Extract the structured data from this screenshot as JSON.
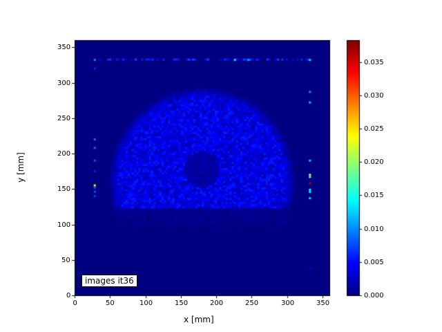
{
  "chart_data": {
    "type": "heatmap",
    "title": "",
    "xlabel": "x [mm]",
    "ylabel": "y [mm]",
    "xlim": [
      0,
      360
    ],
    "ylim": [
      0,
      360
    ],
    "xticks": [
      "0",
      "50",
      "100",
      "150",
      "200",
      "250",
      "300",
      "350"
    ],
    "yticks": [
      "0",
      "50",
      "100",
      "150",
      "200",
      "250",
      "300",
      "350"
    ],
    "colormap": "jet",
    "colorbar": {
      "range": [
        0.0,
        0.0383
      ],
      "ticks": [
        "0.000",
        "0.005",
        "0.010",
        "0.015",
        "0.020",
        "0.025",
        "0.030",
        "0.035"
      ]
    },
    "annotation": "images it36",
    "grid": false,
    "background_value": 0.0,
    "features": {
      "disk": {
        "center_mm": [
          180,
          162
        ],
        "radius_mm": 133,
        "lower_cut_mm": 122,
        "typical_value": 0.004
      },
      "low_hole": {
        "center_mm": [
          180,
          178
        ],
        "radius_mm": 25,
        "typical_value": 0.0015
      }
    },
    "highlighted_cells": [
      {
        "x": 28,
        "y": 332,
        "v": 0.01
      },
      {
        "x": 332,
        "y": 332,
        "v": 0.013
      },
      {
        "x": 226,
        "y": 332,
        "v": 0.013
      },
      {
        "x": 245,
        "y": 332,
        "v": 0.011
      },
      {
        "x": 28,
        "y": 320,
        "v": 0.006
      },
      {
        "x": 332,
        "y": 287,
        "v": 0.01
      },
      {
        "x": 332,
        "y": 272,
        "v": 0.012
      },
      {
        "x": 28,
        "y": 220,
        "v": 0.009
      },
      {
        "x": 28,
        "y": 208,
        "v": 0.009
      },
      {
        "x": 28,
        "y": 190,
        "v": 0.008
      },
      {
        "x": 28,
        "y": 175,
        "v": 0.006
      },
      {
        "x": 28,
        "y": 155,
        "v": 0.024
      },
      {
        "x": 28,
        "y": 152,
        "v": 0.008
      },
      {
        "x": 28,
        "y": 146,
        "v": 0.008
      },
      {
        "x": 28,
        "y": 140,
        "v": 0.007
      },
      {
        "x": 332,
        "y": 190,
        "v": 0.012
      },
      {
        "x": 332,
        "y": 170,
        "v": 0.021
      },
      {
        "x": 332,
        "y": 167,
        "v": 0.019
      },
      {
        "x": 332,
        "y": 158,
        "v": 0.036
      },
      {
        "x": 332,
        "y": 149,
        "v": 0.014
      },
      {
        "x": 332,
        "y": 146,
        "v": 0.014
      },
      {
        "x": 332,
        "y": 137,
        "v": 0.013
      },
      {
        "x": 332,
        "y": 38,
        "v": 0.004
      }
    ]
  }
}
